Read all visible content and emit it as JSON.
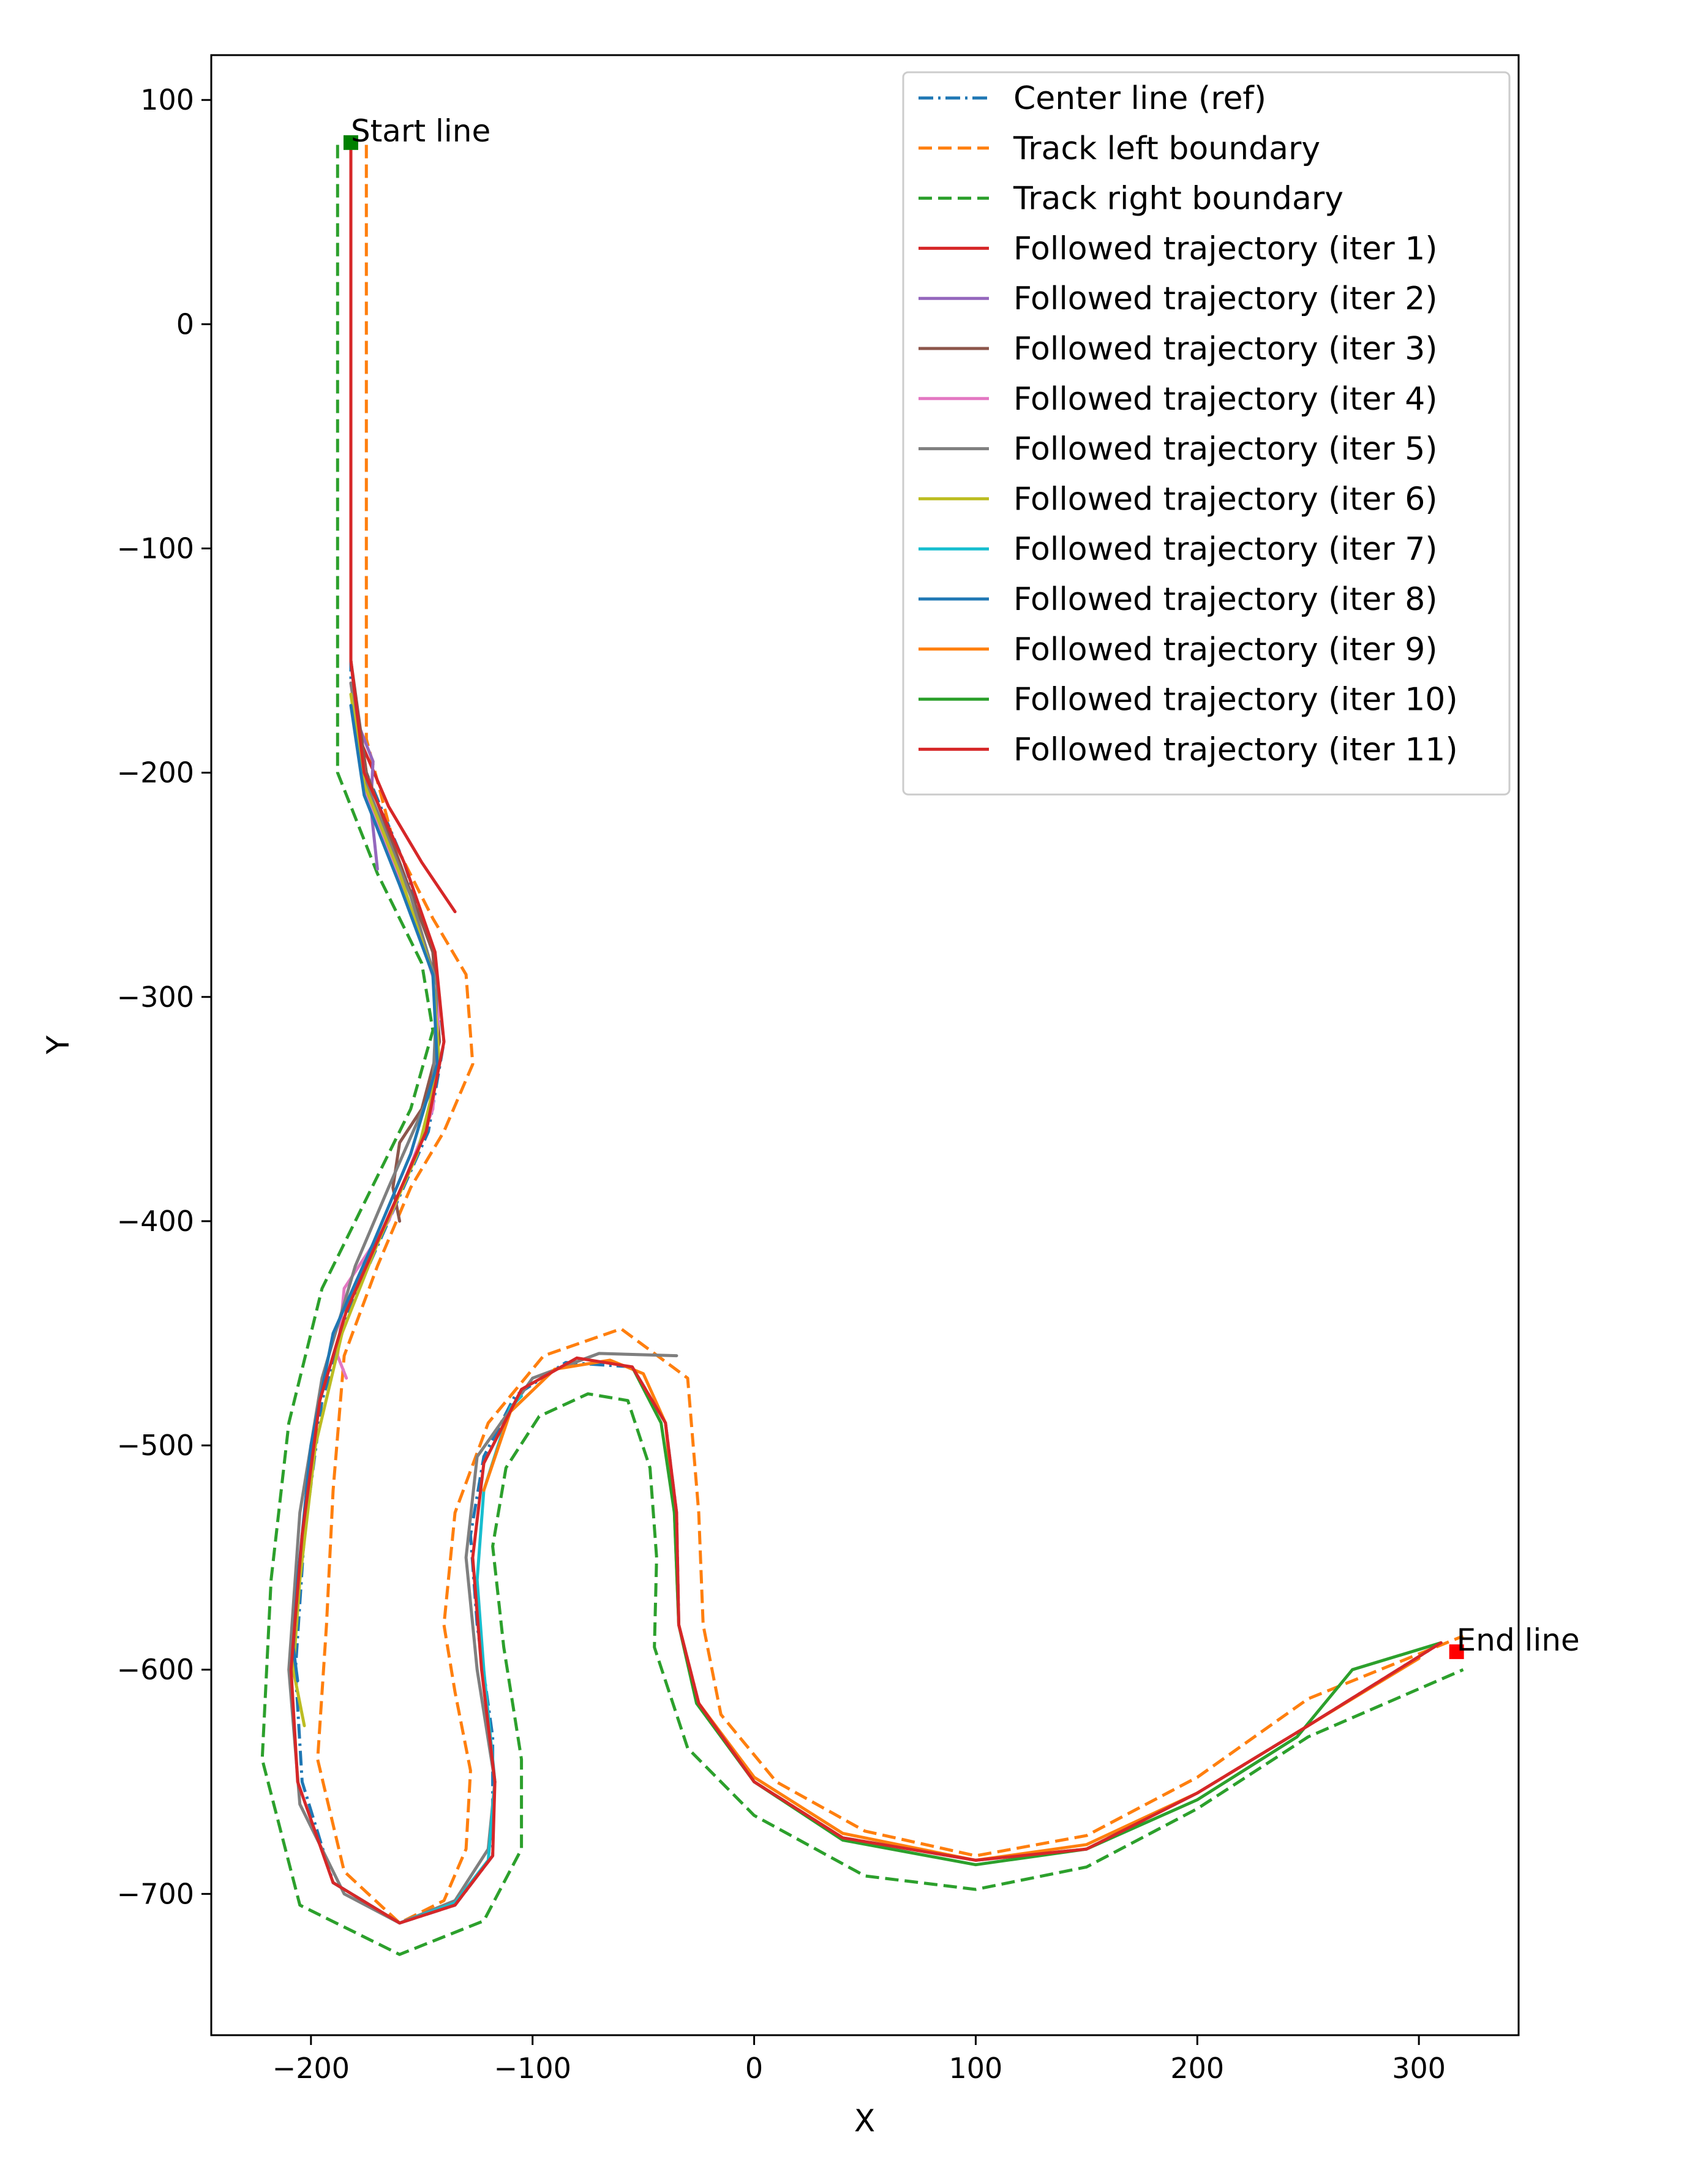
{
  "chart_data": {
    "type": "line",
    "title": "",
    "xlabel": "X",
    "ylabel": "Y",
    "xlim": [
      -245,
      345
    ],
    "ylim": [
      -763,
      120
    ],
    "xticks": [
      -200,
      -100,
      0,
      100,
      200,
      300
    ],
    "yticks": [
      100,
      0,
      -100,
      -200,
      -300,
      -400,
      -500,
      -600,
      -700
    ],
    "xtick_labels": [
      "−200",
      "−100",
      "0",
      "100",
      "200",
      "300"
    ],
    "ytick_labels": [
      "100",
      "0",
      "−100",
      "−200",
      "−300",
      "−400",
      "−500",
      "−600",
      "−700"
    ],
    "grid": false,
    "legend_position": "top-right",
    "annotations": [
      {
        "text": "Start line",
        "x": -182,
        "y": 81,
        "marker_color": "#008000"
      },
      {
        "text": "End line",
        "x": 317,
        "y": -592,
        "marker_color": "#ff0000"
      }
    ],
    "series": [
      {
        "name": "Center line (ref)",
        "color": "#1f77b4",
        "style": "dashdot",
        "points": [
          [
            -182,
            80
          ],
          [
            -182,
            -160
          ],
          [
            -175,
            -200
          ],
          [
            -158,
            -240
          ],
          [
            -145,
            -280
          ],
          [
            -140,
            -320
          ],
          [
            -147,
            -360
          ],
          [
            -165,
            -400
          ],
          [
            -183,
            -440
          ],
          [
            -195,
            -480
          ],
          [
            -203,
            -540
          ],
          [
            -207,
            -600
          ],
          [
            -204,
            -650
          ],
          [
            -190,
            -695
          ],
          [
            -160,
            -713
          ],
          [
            -135,
            -705
          ],
          [
            -118,
            -683
          ],
          [
            -118,
            -630
          ],
          [
            -125,
            -580
          ],
          [
            -128,
            -540
          ],
          [
            -122,
            -505
          ],
          [
            -108,
            -478
          ],
          [
            -85,
            -463
          ],
          [
            -55,
            -465
          ],
          [
            -40,
            -490
          ],
          [
            -35,
            -530
          ],
          [
            -34,
            -580
          ],
          [
            -25,
            -615
          ],
          [
            0,
            -650
          ],
          [
            40,
            -675
          ],
          [
            100,
            -685
          ],
          [
            150,
            -680
          ],
          [
            200,
            -655
          ],
          [
            250,
            -625
          ],
          [
            310,
            -588
          ]
        ]
      },
      {
        "name": "Track left boundary",
        "color": "#ff7f0e",
        "style": "dashed",
        "points": [
          [
            -175,
            80
          ],
          [
            -175,
            -185
          ],
          [
            -163,
            -230
          ],
          [
            -145,
            -265
          ],
          [
            -130,
            -290
          ],
          [
            -127,
            -330
          ],
          [
            -140,
            -360
          ],
          [
            -155,
            -385
          ],
          [
            -170,
            -420
          ],
          [
            -185,
            -460
          ],
          [
            -190,
            -520
          ],
          [
            -193,
            -580
          ],
          [
            -197,
            -640
          ],
          [
            -185,
            -690
          ],
          [
            -160,
            -713
          ],
          [
            -140,
            -703
          ],
          [
            -130,
            -680
          ],
          [
            -128,
            -645
          ],
          [
            -135,
            -610
          ],
          [
            -140,
            -580
          ],
          [
            -135,
            -530
          ],
          [
            -120,
            -490
          ],
          [
            -95,
            -460
          ],
          [
            -60,
            -448
          ],
          [
            -30,
            -470
          ],
          [
            -25,
            -530
          ],
          [
            -23,
            -580
          ],
          [
            -15,
            -620
          ],
          [
            10,
            -650
          ],
          [
            50,
            -672
          ],
          [
            100,
            -683
          ],
          [
            150,
            -674
          ],
          [
            200,
            -648
          ],
          [
            250,
            -613
          ],
          [
            320,
            -585
          ]
        ]
      },
      {
        "name": "Track right boundary",
        "color": "#2ca02c",
        "style": "dashed",
        "points": [
          [
            -188,
            80
          ],
          [
            -188,
            -200
          ],
          [
            -170,
            -245
          ],
          [
            -150,
            -285
          ],
          [
            -145,
            -315
          ],
          [
            -155,
            -350
          ],
          [
            -175,
            -390
          ],
          [
            -195,
            -430
          ],
          [
            -210,
            -490
          ],
          [
            -218,
            -560
          ],
          [
            -222,
            -640
          ],
          [
            -205,
            -705
          ],
          [
            -160,
            -727
          ],
          [
            -122,
            -712
          ],
          [
            -105,
            -680
          ],
          [
            -105,
            -640
          ],
          [
            -113,
            -590
          ],
          [
            -118,
            -545
          ],
          [
            -112,
            -510
          ],
          [
            -97,
            -487
          ],
          [
            -75,
            -477
          ],
          [
            -57,
            -480
          ],
          [
            -47,
            -510
          ],
          [
            -44,
            -550
          ],
          [
            -45,
            -590
          ],
          [
            -30,
            -635
          ],
          [
            0,
            -665
          ],
          [
            50,
            -692
          ],
          [
            100,
            -698
          ],
          [
            150,
            -688
          ],
          [
            200,
            -662
          ],
          [
            250,
            -630
          ],
          [
            320,
            -600
          ]
        ]
      },
      {
        "name": "Followed trajectory (iter 1)",
        "color": "#d62728",
        "style": "solid",
        "points": [
          [
            -182,
            80
          ],
          [
            -182,
            -150
          ],
          [
            -178,
            -185
          ],
          [
            -165,
            -215
          ],
          [
            -150,
            -240
          ],
          [
            -135,
            -262
          ]
        ]
      },
      {
        "name": "Followed trajectory (iter 2)",
        "color": "#9467bd",
        "style": "solid",
        "points": [
          [
            -182,
            -160
          ],
          [
            -178,
            -180
          ],
          [
            -172,
            -195
          ],
          [
            -173,
            -215
          ],
          [
            -170,
            -243
          ]
        ]
      },
      {
        "name": "Followed trajectory (iter 3)",
        "color": "#8c564b",
        "style": "solid",
        "points": [
          [
            -182,
            -150
          ],
          [
            -175,
            -200
          ],
          [
            -160,
            -240
          ],
          [
            -145,
            -280
          ],
          [
            -142,
            -320
          ],
          [
            -150,
            -350
          ],
          [
            -160,
            -365
          ],
          [
            -163,
            -385
          ],
          [
            -160,
            -400
          ]
        ]
      },
      {
        "name": "Followed trajectory (iter 4)",
        "color": "#e377c2",
        "style": "solid",
        "points": [
          [
            -182,
            -160
          ],
          [
            -175,
            -210
          ],
          [
            -155,
            -260
          ],
          [
            -142,
            -300
          ],
          [
            -145,
            -350
          ],
          [
            -165,
            -400
          ],
          [
            -185,
            -430
          ],
          [
            -188,
            -460
          ],
          [
            -184,
            -470
          ]
        ]
      },
      {
        "name": "Followed trajectory (iter 5)",
        "color": "#7f7f7f",
        "style": "solid",
        "points": [
          [
            -182,
            -160
          ],
          [
            -175,
            -205
          ],
          [
            -155,
            -255
          ],
          [
            -143,
            -295
          ],
          [
            -145,
            -340
          ],
          [
            -165,
            -385
          ],
          [
            -180,
            -420
          ],
          [
            -195,
            -470
          ],
          [
            -205,
            -530
          ],
          [
            -210,
            -600
          ],
          [
            -205,
            -660
          ],
          [
            -185,
            -700
          ],
          [
            -160,
            -713
          ],
          [
            -135,
            -703
          ],
          [
            -120,
            -680
          ],
          [
            -117,
            -650
          ],
          [
            -125,
            -600
          ],
          [
            -130,
            -550
          ],
          [
            -125,
            -505
          ],
          [
            -100,
            -470
          ],
          [
            -70,
            -459
          ],
          [
            -35,
            -460
          ]
        ]
      },
      {
        "name": "Followed trajectory (iter 6)",
        "color": "#bcbd22",
        "style": "solid",
        "points": [
          [
            -182,
            -165
          ],
          [
            -176,
            -205
          ],
          [
            -160,
            -245
          ],
          [
            -145,
            -290
          ],
          [
            -142,
            -330
          ],
          [
            -152,
            -370
          ],
          [
            -170,
            -410
          ],
          [
            -186,
            -450
          ],
          [
            -198,
            -500
          ],
          [
            -205,
            -560
          ],
          [
            -208,
            -600
          ],
          [
            -203,
            -625
          ]
        ]
      },
      {
        "name": "Followed trajectory (iter 7)",
        "color": "#17becf",
        "style": "solid",
        "points": [
          [
            -190,
            -695
          ],
          [
            -160,
            -713
          ],
          [
            -135,
            -704
          ],
          [
            -120,
            -685
          ],
          [
            -117,
            -650
          ],
          [
            -122,
            -600
          ],
          [
            -125,
            -560
          ],
          [
            -122,
            -520
          ],
          [
            -110,
            -483
          ],
          [
            -105,
            -478
          ]
        ]
      },
      {
        "name": "Followed trajectory (iter 8)",
        "color": "#1f77b4",
        "style": "solid",
        "points": [
          [
            -182,
            -170
          ],
          [
            -176,
            -210
          ],
          [
            -160,
            -250
          ],
          [
            -145,
            -290
          ],
          [
            -143,
            -330
          ],
          [
            -155,
            -370
          ],
          [
            -172,
            -410
          ],
          [
            -190,
            -450
          ],
          [
            -200,
            -500
          ],
          [
            -206,
            -560
          ],
          [
            -208,
            -590
          ],
          [
            -206,
            -605
          ]
        ]
      },
      {
        "name": "Followed trajectory (iter 9)",
        "color": "#ff7f0e",
        "style": "solid",
        "points": [
          [
            -122,
            -520
          ],
          [
            -110,
            -485
          ],
          [
            -90,
            -466
          ],
          [
            -65,
            -462
          ],
          [
            -50,
            -468
          ],
          [
            -40,
            -490
          ],
          [
            -36,
            -530
          ],
          [
            -34,
            -580
          ],
          [
            -25,
            -615
          ],
          [
            0,
            -648
          ],
          [
            40,
            -673
          ],
          [
            100,
            -685
          ],
          [
            150,
            -678
          ],
          [
            200,
            -655
          ],
          [
            250,
            -625
          ],
          [
            300,
            -595
          ]
        ]
      },
      {
        "name": "Followed trajectory (iter 10)",
        "color": "#2ca02c",
        "style": "solid",
        "points": [
          [
            -55,
            -465
          ],
          [
            -42,
            -490
          ],
          [
            -36,
            -530
          ],
          [
            -34,
            -580
          ],
          [
            -26,
            -615
          ],
          [
            0,
            -650
          ],
          [
            40,
            -676
          ],
          [
            100,
            -687
          ],
          [
            150,
            -680
          ],
          [
            200,
            -658
          ],
          [
            245,
            -630
          ],
          [
            270,
            -600
          ],
          [
            310,
            -588
          ]
        ]
      },
      {
        "name": "Followed trajectory (iter 11)",
        "color": "#d62728",
        "style": "solid",
        "points": [
          [
            -182,
            -150
          ],
          [
            -176,
            -200
          ],
          [
            -158,
            -240
          ],
          [
            -144,
            -280
          ],
          [
            -140,
            -320
          ],
          [
            -148,
            -360
          ],
          [
            -166,
            -400
          ],
          [
            -184,
            -440
          ],
          [
            -196,
            -480
          ],
          [
            -204,
            -540
          ],
          [
            -209,
            -600
          ],
          [
            -206,
            -650
          ],
          [
            -190,
            -695
          ],
          [
            -160,
            -713
          ],
          [
            -135,
            -705
          ],
          [
            -118,
            -683
          ],
          [
            -117,
            -650
          ],
          [
            -123,
            -600
          ],
          [
            -127,
            -550
          ],
          [
            -122,
            -508
          ],
          [
            -105,
            -475
          ],
          [
            -80,
            -461
          ],
          [
            -55,
            -465
          ],
          [
            -40,
            -490
          ],
          [
            -35,
            -530
          ],
          [
            -34,
            -580
          ],
          [
            -25,
            -615
          ],
          [
            0,
            -650
          ],
          [
            40,
            -675
          ],
          [
            100,
            -685
          ],
          [
            150,
            -680
          ],
          [
            200,
            -655
          ],
          [
            250,
            -625
          ],
          [
            310,
            -588
          ]
        ]
      }
    ]
  }
}
